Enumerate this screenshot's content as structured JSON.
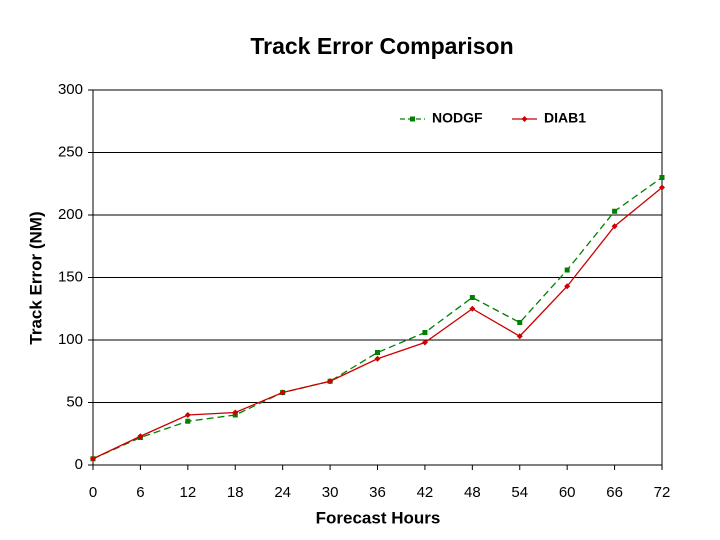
{
  "chart_data": {
    "type": "line",
    "title": "Track Error Comparison",
    "x_label": "Forecast Hours",
    "y_label": "Track Error (NM)",
    "x": [
      0,
      6,
      12,
      18,
      24,
      30,
      36,
      42,
      48,
      54,
      60,
      66,
      72
    ],
    "xlim": [
      0,
      72
    ],
    "xticks": [
      0,
      6,
      12,
      18,
      24,
      30,
      36,
      42,
      48,
      54,
      60,
      66,
      72
    ],
    "ylim": [
      0,
      300
    ],
    "yticks": [
      0,
      50,
      100,
      150,
      200,
      250,
      300
    ],
    "grid": true,
    "legend": "upper right",
    "series": [
      {
        "name": "NODGF",
        "color": "#008000",
        "dashed": true,
        "marker": "square",
        "values": [
          5,
          22,
          35,
          40,
          58,
          67,
          90,
          106,
          134,
          114,
          156,
          203,
          230
        ]
      },
      {
        "name": "DIAB1",
        "color": "#cc0000",
        "dashed": false,
        "marker": "diamond",
        "values": [
          5,
          23,
          40,
          42,
          58,
          67,
          85,
          98,
          125,
          103,
          143,
          191,
          222
        ]
      }
    ]
  }
}
